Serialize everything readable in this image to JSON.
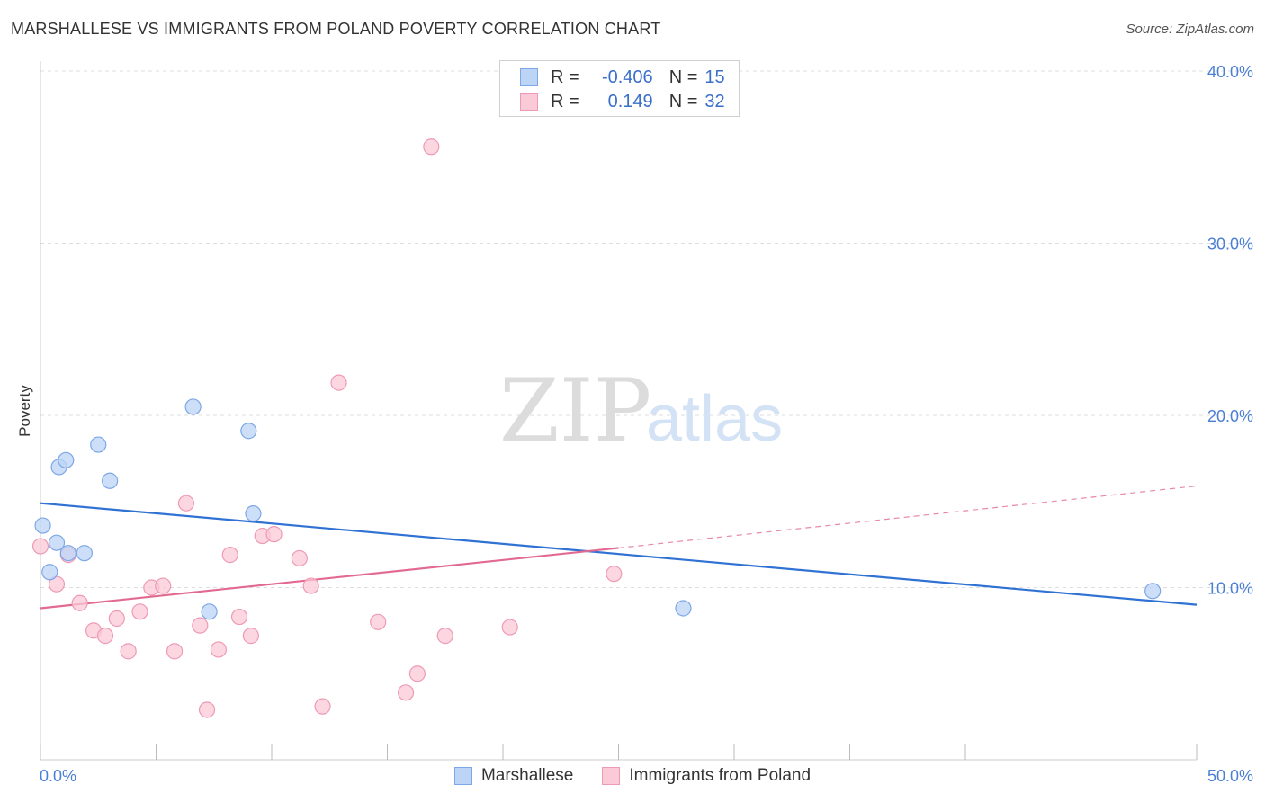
{
  "title": "MARSHALLESE VS IMMIGRANTS FROM POLAND POVERTY CORRELATION CHART",
  "source": "Source: ZipAtlas.com",
  "watermark": {
    "zip": "ZIP",
    "atlas": "atlas"
  },
  "legend": {
    "r_label": "R =",
    "n_label": "N =",
    "rows": [
      {
        "series": "Marshallese",
        "r": "-0.406",
        "n": "15"
      },
      {
        "series": "Immigrants from Poland",
        "r": "0.149",
        "n": "32"
      }
    ]
  },
  "colors": {
    "marshallese_fill": "#bcd4f6",
    "marshallese_stroke": "#7da7e6",
    "marshallese_line": "#2f72d4",
    "poland_fill": "#fbcad8",
    "poland_stroke": "#ee9ab4",
    "poland_line": "#e26a90",
    "tick": "#4a7fd4",
    "grid": "#dddddd"
  },
  "chart_data": {
    "type": "scatter",
    "title": "MARSHALLESE VS IMMIGRANTS FROM POLAND POVERTY CORRELATION CHART",
    "xlabel": "",
    "ylabel": "Poverty",
    "xlim": [
      0,
      50
    ],
    "ylim": [
      0,
      40
    ],
    "x_tick_labels": [
      {
        "value": 0,
        "label": "0.0%"
      },
      {
        "value": 50,
        "label": "50.0%"
      }
    ],
    "x_minor_ticks": [
      0,
      5,
      10,
      15,
      20,
      25,
      30,
      35,
      40,
      45,
      50
    ],
    "y_tick_labels": [
      {
        "value": 10,
        "label": "10.0%"
      },
      {
        "value": 20,
        "label": "20.0%"
      },
      {
        "value": 30,
        "label": "30.0%"
      },
      {
        "value": 40,
        "label": "40.0%"
      }
    ],
    "grid": true,
    "legend_position": "top-center",
    "series": [
      {
        "name": "Marshallese",
        "r": -0.406,
        "n": 15,
        "points": [
          {
            "x": 0.1,
            "y": 13.6
          },
          {
            "x": 0.4,
            "y": 10.9
          },
          {
            "x": 0.7,
            "y": 12.6
          },
          {
            "x": 0.8,
            "y": 17.0
          },
          {
            "x": 1.1,
            "y": 17.4
          },
          {
            "x": 1.2,
            "y": 12.0
          },
          {
            "x": 1.9,
            "y": 12.0
          },
          {
            "x": 2.5,
            "y": 18.3
          },
          {
            "x": 3.0,
            "y": 16.2
          },
          {
            "x": 6.6,
            "y": 20.5
          },
          {
            "x": 7.3,
            "y": 8.6
          },
          {
            "x": 9.0,
            "y": 19.1
          },
          {
            "x": 9.2,
            "y": 14.3
          },
          {
            "x": 27.8,
            "y": 8.8
          },
          {
            "x": 48.1,
            "y": 9.8
          }
        ],
        "trend": {
          "x0": 0,
          "y0": 14.9,
          "x1": 50,
          "y1": 9.0
        }
      },
      {
        "name": "Immigrants from Poland",
        "r": 0.149,
        "n": 32,
        "points": [
          {
            "x": 0.0,
            "y": 12.4
          },
          {
            "x": 0.7,
            "y": 10.2
          },
          {
            "x": 1.2,
            "y": 11.9
          },
          {
            "x": 1.7,
            "y": 9.1
          },
          {
            "x": 2.3,
            "y": 7.5
          },
          {
            "x": 2.8,
            "y": 7.2
          },
          {
            "x": 3.3,
            "y": 8.2
          },
          {
            "x": 3.8,
            "y": 6.3
          },
          {
            "x": 4.3,
            "y": 8.6
          },
          {
            "x": 4.8,
            "y": 10.0
          },
          {
            "x": 5.3,
            "y": 10.1
          },
          {
            "x": 5.8,
            "y": 6.3
          },
          {
            "x": 6.3,
            "y": 14.9
          },
          {
            "x": 6.9,
            "y": 7.8
          },
          {
            "x": 7.2,
            "y": 2.9
          },
          {
            "x": 7.7,
            "y": 6.4
          },
          {
            "x": 8.2,
            "y": 11.9
          },
          {
            "x": 8.6,
            "y": 8.3
          },
          {
            "x": 9.1,
            "y": 7.2
          },
          {
            "x": 9.6,
            "y": 13.0
          },
          {
            "x": 10.1,
            "y": 13.1
          },
          {
            "x": 11.2,
            "y": 11.7
          },
          {
            "x": 11.7,
            "y": 10.1
          },
          {
            "x": 12.2,
            "y": 3.1
          },
          {
            "x": 12.9,
            "y": 21.9
          },
          {
            "x": 14.6,
            "y": 8.0
          },
          {
            "x": 15.8,
            "y": 3.9
          },
          {
            "x": 16.3,
            "y": 5.0
          },
          {
            "x": 16.9,
            "y": 35.6
          },
          {
            "x": 17.5,
            "y": 7.2
          },
          {
            "x": 20.3,
            "y": 7.7
          },
          {
            "x": 24.8,
            "y": 10.8
          }
        ],
        "trend": {
          "x0": 0,
          "y0": 8.8,
          "x1": 25,
          "y1": 12.3
        },
        "trend_dashed": {
          "x0": 25,
          "y0": 12.3,
          "x1": 50,
          "y1": 15.9
        }
      }
    ]
  }
}
